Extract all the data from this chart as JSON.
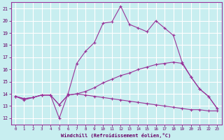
{
  "xlabel": "Windchill (Refroidissement éolien,°C)",
  "background_color": "#c8eef0",
  "grid_color": "#ffffff",
  "line_color": "#993399",
  "xlim": [
    -0.5,
    23.5
  ],
  "ylim": [
    11.5,
    21.5
  ],
  "yticks": [
    12,
    13,
    14,
    15,
    16,
    17,
    18,
    19,
    20,
    21
  ],
  "xticks": [
    0,
    1,
    2,
    3,
    4,
    5,
    6,
    7,
    8,
    9,
    10,
    11,
    12,
    13,
    14,
    15,
    16,
    17,
    18,
    19,
    20,
    21,
    22,
    23
  ],
  "line1_x": [
    0,
    1,
    2,
    3,
    4,
    5,
    6,
    7,
    8,
    9,
    10,
    11,
    12,
    13,
    14,
    15,
    16,
    17,
    18,
    19,
    20,
    21,
    22,
    23
  ],
  "line1_y": [
    13.8,
    13.5,
    13.7,
    13.9,
    13.9,
    12.0,
    14.0,
    16.5,
    17.5,
    18.2,
    19.8,
    19.9,
    21.2,
    19.7,
    19.4,
    19.1,
    20.0,
    19.4,
    18.8,
    16.6,
    15.4,
    14.4,
    13.8,
    12.8
  ],
  "line2_x": [
    0,
    1,
    2,
    3,
    4,
    5,
    6,
    7,
    8,
    9,
    10,
    11,
    12,
    13,
    14,
    15,
    16,
    17,
    18,
    19,
    20,
    21,
    22,
    23
  ],
  "line2_y": [
    13.8,
    13.6,
    13.7,
    13.9,
    13.9,
    13.1,
    13.9,
    14.0,
    14.2,
    14.5,
    14.9,
    15.2,
    15.5,
    15.7,
    16.0,
    16.2,
    16.4,
    16.5,
    16.6,
    16.5,
    15.4,
    14.4,
    13.8,
    12.8
  ],
  "line3_x": [
    0,
    1,
    2,
    3,
    4,
    5,
    6,
    7,
    8,
    9,
    10,
    11,
    12,
    13,
    14,
    15,
    16,
    17,
    18,
    19,
    20,
    21,
    22,
    23
  ],
  "line3_y": [
    13.8,
    13.6,
    13.7,
    13.9,
    13.9,
    13.1,
    13.9,
    14.0,
    13.9,
    13.8,
    13.7,
    13.6,
    13.5,
    13.4,
    13.3,
    13.2,
    13.1,
    13.0,
    12.9,
    12.8,
    12.7,
    12.7,
    12.6,
    12.6
  ]
}
